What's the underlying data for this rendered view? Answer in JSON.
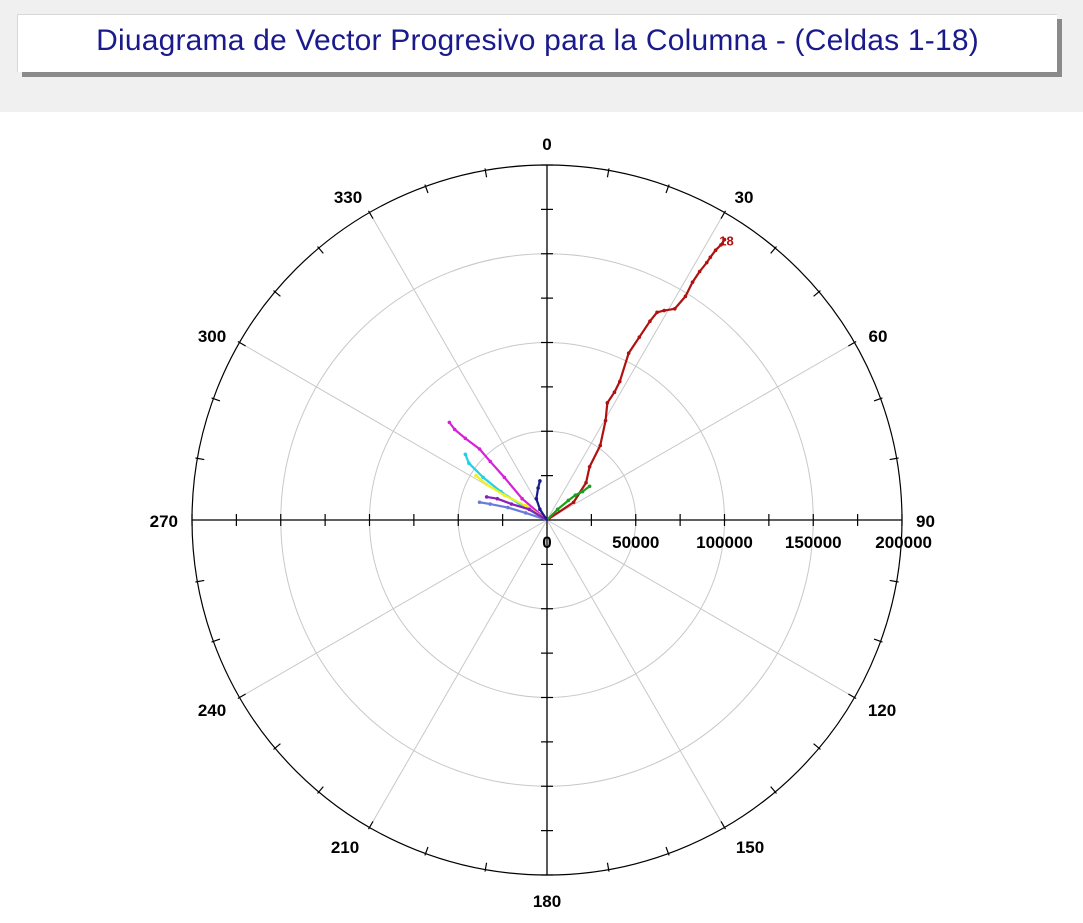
{
  "title": "Diuagrama de Vector Progresivo para la Columna - (Celdas 1-18)",
  "chart_data": {
    "type": "polar_vector_progressive",
    "title": "Diuagrama de Vector Progresivo para la Columna - (Celdas 1-18)",
    "angular_unit": "degrees",
    "angle_ticks": [
      "0",
      "30",
      "60",
      "90",
      "120",
      "150",
      "180",
      "210",
      "240",
      "270",
      "300",
      "330"
    ],
    "angle_tick_values": [
      0,
      30,
      60,
      90,
      120,
      150,
      180,
      210,
      240,
      270,
      300,
      330
    ],
    "radial_ticks": [
      "0",
      "50000",
      "100000",
      "150000",
      "200000"
    ],
    "radial_tick_values": [
      0,
      50000,
      100000,
      150000,
      200000
    ],
    "radial_range": [
      0,
      200000
    ],
    "grid": true,
    "series": [
      {
        "color": "#b01010",
        "end_label": "18",
        "points": [
          [
            0,
            0
          ],
          [
            15000,
            10000
          ],
          [
            22000,
            21000
          ],
          [
            24000,
            30000
          ],
          [
            30000,
            42000
          ],
          [
            33000,
            56000
          ],
          [
            34000,
            66000
          ],
          [
            38000,
            72000
          ],
          [
            41000,
            78000
          ],
          [
            46000,
            94000
          ],
          [
            52000,
            103000
          ],
          [
            58000,
            112000
          ],
          [
            62000,
            117000
          ],
          [
            66000,
            118000
          ],
          [
            72000,
            119000
          ],
          [
            78000,
            126000
          ],
          [
            82000,
            134000
          ],
          [
            86000,
            140000
          ],
          [
            90000,
            145000
          ],
          [
            92000,
            148000
          ],
          [
            95000,
            152000
          ],
          [
            98000,
            155000
          ],
          [
            100000,
            158000
          ]
        ]
      },
      {
        "color": "#1aa01a",
        "end_label": "",
        "points": [
          [
            0,
            0
          ],
          [
            6000,
            6000
          ],
          [
            12000,
            11000
          ],
          [
            16000,
            14000
          ],
          [
            20000,
            16000
          ],
          [
            24000,
            19000
          ]
        ]
      },
      {
        "color": "#d820d8",
        "end_label": "",
        "points": [
          [
            0,
            0
          ],
          [
            -14000,
            12000
          ],
          [
            -24000,
            24000
          ],
          [
            -32000,
            33000
          ],
          [
            -38000,
            40000
          ],
          [
            -46000,
            46000
          ],
          [
            -52000,
            51000
          ],
          [
            -55000,
            55000
          ]
        ]
      },
      {
        "color": "#20d0e8",
        "end_label": "",
        "points": [
          [
            0,
            0
          ],
          [
            -14000,
            8000
          ],
          [
            -26000,
            16000
          ],
          [
            -36000,
            24000
          ],
          [
            -44000,
            32000
          ],
          [
            -46000,
            37000
          ]
        ]
      },
      {
        "color": "#f0f020",
        "end_label": "",
        "points": [
          [
            0,
            0
          ],
          [
            -12000,
            8000
          ],
          [
            -24000,
            14000
          ],
          [
            -34000,
            20000
          ],
          [
            -40000,
            25000
          ]
        ]
      },
      {
        "color": "#6a7ad8",
        "end_label": "",
        "points": [
          [
            0,
            0
          ],
          [
            -12000,
            4000
          ],
          [
            -22000,
            7000
          ],
          [
            -32000,
            9000
          ],
          [
            -38000,
            10000
          ]
        ]
      },
      {
        "color": "#8a20b8",
        "end_label": "",
        "points": [
          [
            0,
            0
          ],
          [
            -10000,
            6000
          ],
          [
            -20000,
            9000
          ],
          [
            -28000,
            12000
          ],
          [
            -34000,
            13000
          ]
        ]
      },
      {
        "color": "#1a1a8c",
        "end_label": "",
        "points": [
          [
            0,
            0
          ],
          [
            -4000,
            6000
          ],
          [
            -6000,
            12000
          ],
          [
            -5000,
            18000
          ],
          [
            -4000,
            22000
          ]
        ]
      }
    ]
  }
}
